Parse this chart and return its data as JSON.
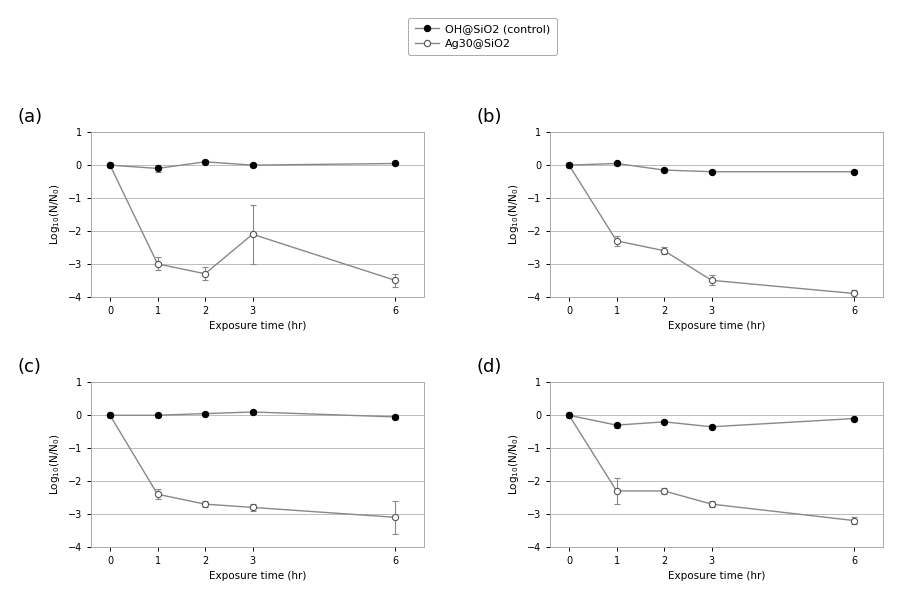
{
  "x": [
    0,
    1,
    2,
    3,
    6
  ],
  "panels": [
    "(a)",
    "(b)",
    "(c)",
    "(d)"
  ],
  "control_y": {
    "a": [
      0.0,
      -0.1,
      0.1,
      0.0,
      0.05
    ],
    "b": [
      0.0,
      0.05,
      -0.15,
      -0.2,
      -0.2
    ],
    "c": [
      0.0,
      0.0,
      0.05,
      0.1,
      -0.05
    ],
    "d": [
      0.0,
      -0.3,
      -0.2,
      -0.35,
      -0.1
    ]
  },
  "control_err": {
    "a": [
      0.05,
      0.1,
      0.05,
      0.05,
      0.05
    ],
    "b": [
      0.05,
      0.05,
      0.05,
      0.05,
      0.05
    ],
    "c": [
      0.03,
      0.05,
      0.05,
      0.05,
      0.05
    ],
    "d": [
      0.05,
      0.08,
      0.05,
      0.05,
      0.05
    ]
  },
  "ag_y": {
    "a": [
      0.0,
      -3.0,
      -3.3,
      -2.1,
      -3.5
    ],
    "b": [
      0.0,
      -2.3,
      -2.6,
      -3.5,
      -3.9
    ],
    "c": [
      0.0,
      -2.4,
      -2.7,
      -2.8,
      -3.1
    ],
    "d": [
      0.0,
      -2.3,
      -2.3,
      -2.7,
      -3.2
    ]
  },
  "ag_err": {
    "a": [
      0.05,
      0.2,
      0.2,
      0.9,
      0.2
    ],
    "b": [
      0.05,
      0.15,
      0.1,
      0.15,
      0.1
    ],
    "c": [
      0.05,
      0.15,
      0.1,
      0.1,
      0.5
    ],
    "d": [
      0.05,
      0.4,
      0.1,
      0.1,
      0.1
    ]
  },
  "xlabel": "Exposure time (hr)",
  "ylabel": "Log$_{10}$(N/N$_0$)",
  "ylim": [
    -4,
    1
  ],
  "yticks": [
    -4,
    -3,
    -2,
    -1,
    0,
    1
  ],
  "xticks": [
    0,
    1,
    2,
    3,
    6
  ],
  "legend_labels": [
    "OH@SiO2 (control)",
    "Ag30@SiO2"
  ],
  "line_color": "#888888",
  "bg_color": "#ffffff",
  "grid_color": "#bbbbbb"
}
